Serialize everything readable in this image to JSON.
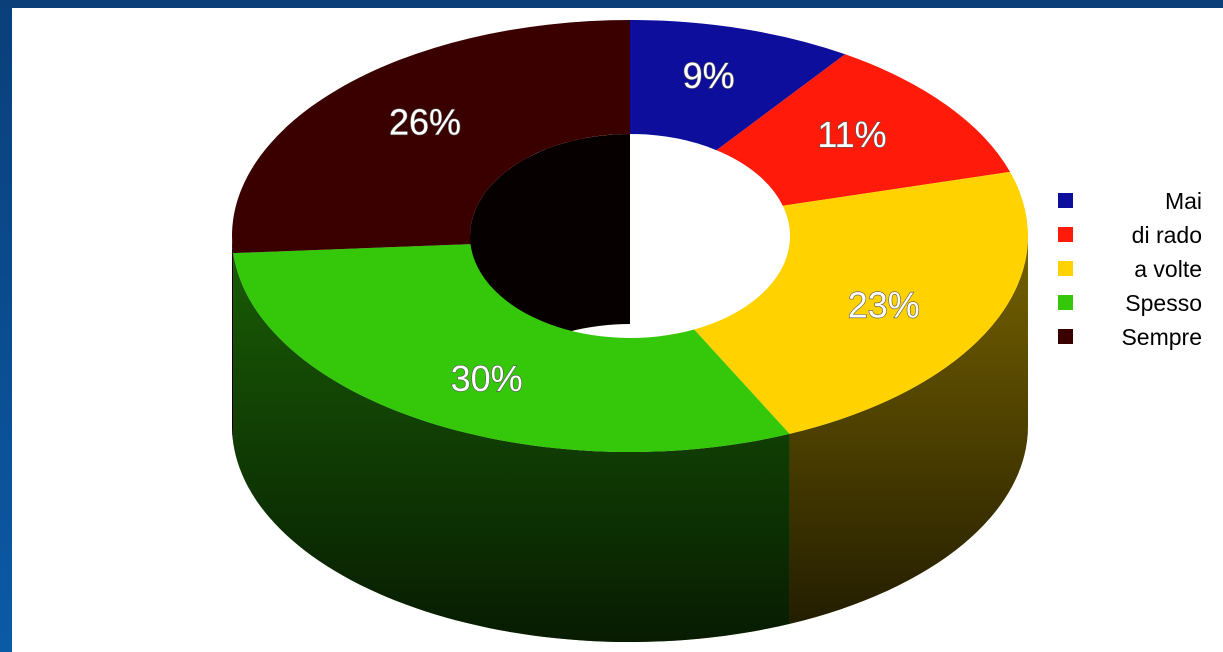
{
  "chart_data": {
    "type": "pie",
    "variant": "3d-donut",
    "title": "",
    "categories": [
      "Mai",
      "di rado",
      "a volte",
      "Spesso",
      "Sempre"
    ],
    "values": [
      9,
      11,
      23,
      30,
      26
    ],
    "value_labels": [
      "9%",
      "11%",
      "23%",
      "30%",
      "26%"
    ],
    "colors": [
      "#0e0e9c",
      "#ff1a0a",
      "#ffd200",
      "#34c70a",
      "#3a0000"
    ],
    "legend_position": "right"
  }
}
